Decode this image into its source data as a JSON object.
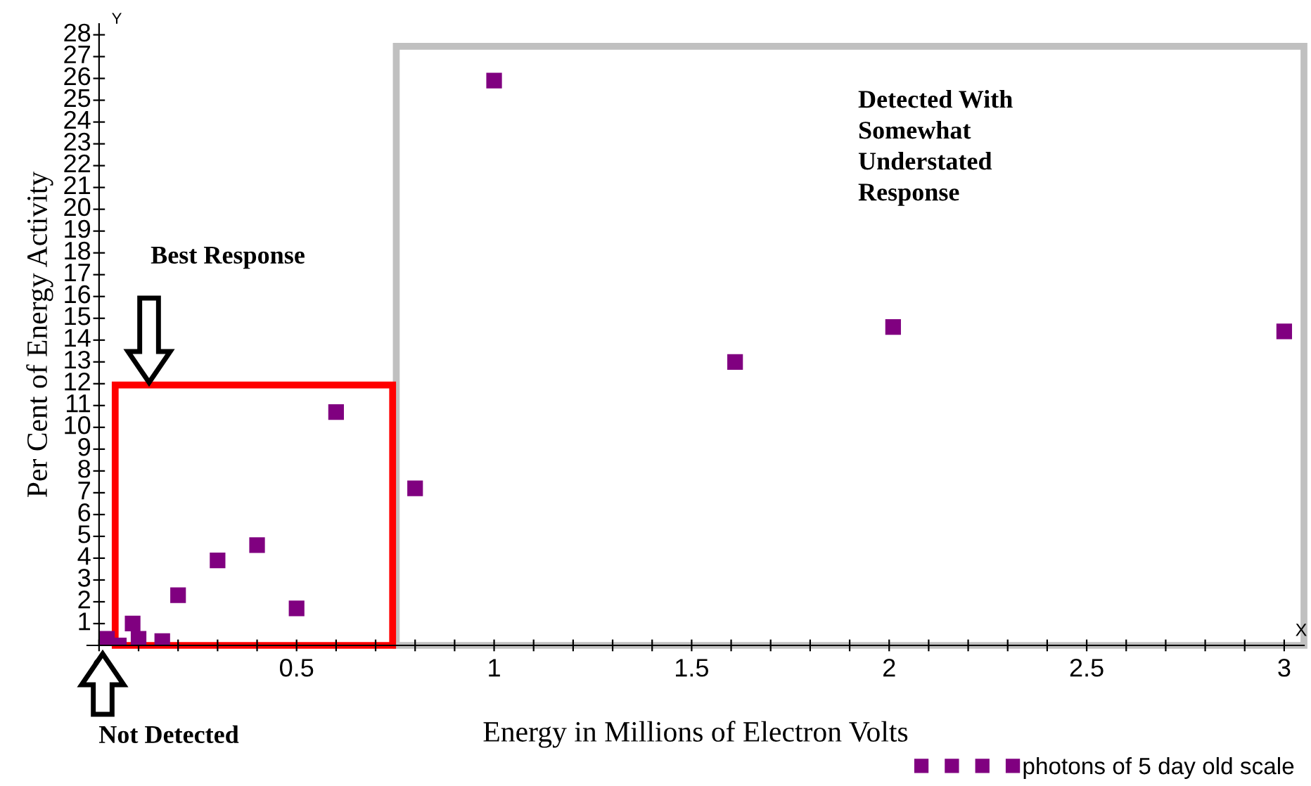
{
  "chart_data": {
    "type": "scatter",
    "xlabel": "Energy in Millions of Electron Volts",
    "ylabel": "Per Cent of Energy Activity",
    "series": [
      {
        "name": "photons of 5 day old scale",
        "color": "#800080",
        "x": [
          0.02,
          0.05,
          0.085,
          0.1,
          0.16,
          0.2,
          0.3,
          0.4,
          0.5,
          0.6,
          0.8,
          1.0,
          1.61,
          2.01,
          3.0
        ],
        "values": [
          0.3,
          0,
          1,
          0.3,
          0.2,
          2.3,
          3.9,
          4.6,
          1.7,
          10.7,
          7.2,
          25.9,
          13.0,
          14.6,
          14.4
        ]
      }
    ],
    "marker": "square",
    "legend": "bottom right",
    "grid": false,
    "xlim": [
      -0.03,
      3.05
    ],
    "xticks": [
      0,
      {
        "value": 0.1,
        "label": null
      },
      {
        "value": 0.2,
        "label": null
      },
      {
        "value": 0.3,
        "label": null
      },
      {
        "value": 0.4,
        "label": null
      },
      0.5,
      {
        "value": 0.6,
        "label": null
      },
      {
        "value": 0.7,
        "label": null
      },
      {
        "value": 0.8,
        "label": null
      },
      {
        "value": 0.9,
        "label": null
      },
      1,
      {
        "value": 1.1,
        "label": null
      },
      {
        "value": 1.2,
        "label": null
      },
      {
        "value": 1.3,
        "label": null
      },
      {
        "value": 1.4,
        "label": null
      },
      1.5,
      {
        "value": 1.6,
        "label": null
      },
      {
        "value": 1.7,
        "label": null
      },
      {
        "value": 1.8,
        "label": null
      },
      {
        "value": 1.9,
        "label": null
      },
      2,
      {
        "value": 2.1,
        "label": null
      },
      {
        "value": 2.2,
        "label": null
      },
      {
        "value": 2.3,
        "label": null
      },
      {
        "value": 2.4,
        "label": null
      },
      2.5,
      {
        "value": 2.6,
        "label": null
      },
      {
        "value": 2.7,
        "label": null
      },
      {
        "value": 2.8,
        "label": null
      },
      {
        "value": 2.9,
        "label": null
      },
      3
    ],
    "ylim": [
      0,
      28.5
    ],
    "yticks": [
      1,
      2,
      3,
      4,
      5,
      6,
      7,
      8,
      9,
      10,
      11,
      12,
      13,
      14,
      15,
      16,
      17,
      18,
      19,
      20,
      21,
      22,
      23,
      24,
      25,
      26,
      27,
      28
    ],
    "annotations": [
      "Best Response",
      "Detected With\nSomewhat\nUnderstated\nResponse",
      "Not Detected",
      "Y",
      "X"
    ]
  }
}
